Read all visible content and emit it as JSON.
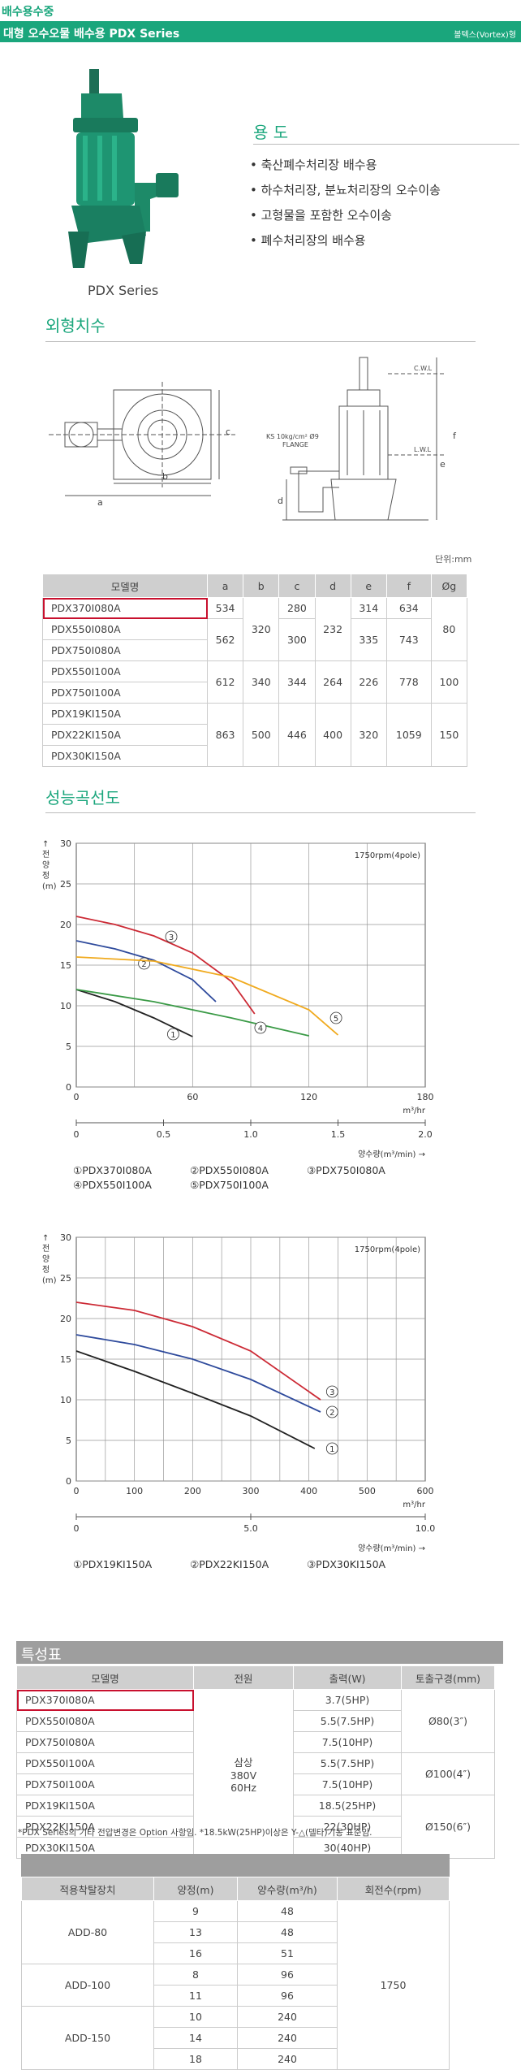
{
  "header": {
    "category": "배수용수중",
    "title": "대형 오수오물 배수용 PDX Series",
    "type": "볼텍스(Vortex)형"
  },
  "product": {
    "caption": "PDX Series"
  },
  "usage": {
    "title": "용 도",
    "items": [
      "축산폐수처리장 배수용",
      "하수처리장, 분뇨처리장의 오수이송",
      "고형물을 포함한 오수이송",
      "폐수처리장의 배수용"
    ]
  },
  "dimensions": {
    "title": "외형치수",
    "unit": "단위:mm",
    "drawing_labels": {
      "flange": "KS 10kg/cm²  Ø9",
      "flange2": "FLANGE",
      "cwl": "C.W.L",
      "lwl": "L.W.L",
      "b": "b",
      "c": "c",
      "a": "a",
      "d": "d",
      "e": "e",
      "f": "f"
    },
    "columns": [
      "모델명",
      "a",
      "b",
      "c",
      "d",
      "e",
      "f",
      "Øg"
    ],
    "models": [
      "PDX370I080A",
      "PDX550I080A",
      "PDX750I080A",
      "PDX550I100A",
      "PDX750I100A",
      "PDX19KI150A",
      "PDX22KI150A",
      "PDX30KI150A"
    ],
    "values": {
      "a": [
        "534",
        "562",
        "612",
        "863"
      ],
      "b": [
        "320",
        "340",
        "500"
      ],
      "c": [
        "280",
        "300",
        "344",
        "446"
      ],
      "d": [
        "232",
        "264",
        "400"
      ],
      "e": [
        "314",
        "335",
        "226",
        "320"
      ],
      "f": [
        "634",
        "743",
        "778",
        "1059"
      ],
      "g": [
        "80",
        "100",
        "150"
      ]
    }
  },
  "performance": {
    "title": "성능곡선도",
    "ylabel": "↑ 전 양 정 (m)",
    "chart1_x2label": "양수량(m³/min) →",
    "chart1_legend": [
      "①PDX370I080A",
      "②PDX550I080A",
      "③PDX750I080A",
      "④PDX550I100A",
      "⑤PDX750I100A"
    ],
    "chart2_legend": [
      "①PDX19KI150A",
      "②PDX22KI150A",
      "③PDX30KI150A"
    ]
  },
  "chart_data": [
    {
      "type": "line",
      "rpm": "1750rpm(4pole)",
      "ylabel": "↑ 전 양 정 (m)",
      "xlabel": "m³/hr",
      "x2label": "양수량(m³/min) →",
      "xlim": [
        0,
        180
      ],
      "ylim": [
        0,
        30
      ],
      "xticks": [
        "0",
        "60",
        "120",
        "180"
      ],
      "yticks": [
        "0",
        "5",
        "10",
        "15",
        "20",
        "25",
        "30"
      ],
      "x2ticks": [
        "0",
        "0.5",
        "1.0",
        "1.5",
        "2.0"
      ],
      "series": [
        {
          "name": "①",
          "color": "#222222",
          "x": [
            0,
            20,
            40,
            60
          ],
          "y": [
            12,
            10.5,
            8.5,
            6.2
          ],
          "label_at": [
            50,
            6.5
          ]
        },
        {
          "name": "②",
          "color": "#2e4a9c",
          "x": [
            0,
            20,
            40,
            60,
            72
          ],
          "y": [
            18,
            17,
            15.6,
            13.2,
            10.5
          ],
          "label_at": [
            35,
            15.2
          ]
        },
        {
          "name": "③",
          "color": "#cc2a35",
          "x": [
            0,
            20,
            40,
            60,
            80,
            92
          ],
          "y": [
            21,
            20,
            18.6,
            16.5,
            13,
            9
          ],
          "label_at": [
            49,
            18.5
          ]
        },
        {
          "name": "④",
          "color": "#3a9a46",
          "x": [
            0,
            40,
            80,
            120
          ],
          "y": [
            12,
            10.5,
            8.5,
            6.3
          ],
          "label_at": [
            95,
            7.3
          ]
        },
        {
          "name": "⑤",
          "color": "#f0aa1e",
          "x": [
            0,
            40,
            80,
            120,
            135
          ],
          "y": [
            16,
            15.5,
            13.5,
            9.5,
            6.4
          ],
          "label_at": [
            134,
            8.5
          ]
        }
      ]
    },
    {
      "type": "line",
      "rpm": "1750rpm(4pole)",
      "ylabel": "↑ 전 양 정 (m)",
      "xlabel": "m³/hr",
      "x2label": "양수량(m³/min) →",
      "xlim": [
        0,
        600
      ],
      "ylim": [
        0,
        30
      ],
      "xticks": [
        "0",
        "100",
        "200",
        "300",
        "400",
        "500",
        "600"
      ],
      "yticks": [
        "0",
        "5",
        "10",
        "15",
        "20",
        "25",
        "30"
      ],
      "x2ticks": [
        "0",
        "5.0",
        "10.0"
      ],
      "series": [
        {
          "name": "①",
          "color": "#222222",
          "x": [
            0,
            100,
            200,
            300,
            410
          ],
          "y": [
            16,
            13.5,
            10.8,
            8,
            4
          ],
          "label_at": [
            440,
            4
          ]
        },
        {
          "name": "②",
          "color": "#2e4a9c",
          "x": [
            0,
            100,
            200,
            300,
            420
          ],
          "y": [
            18,
            16.8,
            15,
            12.5,
            8.5
          ],
          "label_at": [
            440,
            8.5
          ]
        },
        {
          "name": "③",
          "color": "#cc2a35",
          "x": [
            0,
            100,
            200,
            300,
            420
          ],
          "y": [
            22,
            21,
            19,
            16,
            10
          ],
          "label_at": [
            440,
            11
          ]
        }
      ]
    }
  ],
  "features": {
    "title": "특성표",
    "columns": [
      "모델명",
      "전원",
      "출력(W)",
      "토출구경(mm)"
    ],
    "models": [
      "PDX370I080A",
      "PDX550I080A",
      "PDX750I080A",
      "PDX550I100A",
      "PDX750I100A",
      "PDX19KI150A",
      "PDX22KI150A",
      "PDX30KI150A"
    ],
    "power_lines": [
      "삼상",
      "380V",
      "60Hz"
    ],
    "outputs": [
      "3.7(5HP)",
      "5.5(7.5HP)",
      "7.5(10HP)",
      "5.5(7.5HP)",
      "7.5(10HP)",
      "18.5(25HP)",
      "22(30HP)",
      "30(40HP)"
    ],
    "outlets": [
      "Ø80(3″)",
      "Ø100(4″)",
      "Ø150(6″)"
    ],
    "note": "*PDX Series의 기타 전압변경은 Option 사항임. *18.5kW(25HP)이상은 Y-△(델타)기동 표준임."
  },
  "add_table": {
    "columns": [
      "적용착탈장치",
      "양정(m)",
      "양수량(m³/h)",
      "회전수(rpm)"
    ],
    "groups": [
      {
        "name": "ADD-80",
        "rows": [
          [
            "9",
            "48"
          ],
          [
            "13",
            "48"
          ],
          [
            "16",
            "51"
          ]
        ]
      },
      {
        "name": "ADD-100",
        "rows": [
          [
            "8",
            "96"
          ],
          [
            "11",
            "96"
          ]
        ]
      },
      {
        "name": "ADD-150",
        "rows": [
          [
            "10",
            "240"
          ],
          [
            "14",
            "240"
          ],
          [
            "18",
            "240"
          ]
        ]
      }
    ],
    "rpm": "1750"
  },
  "colors": {
    "accent": "#1aa67c",
    "highlight": "#c8102e",
    "header_gray": "#cfcfcf"
  }
}
